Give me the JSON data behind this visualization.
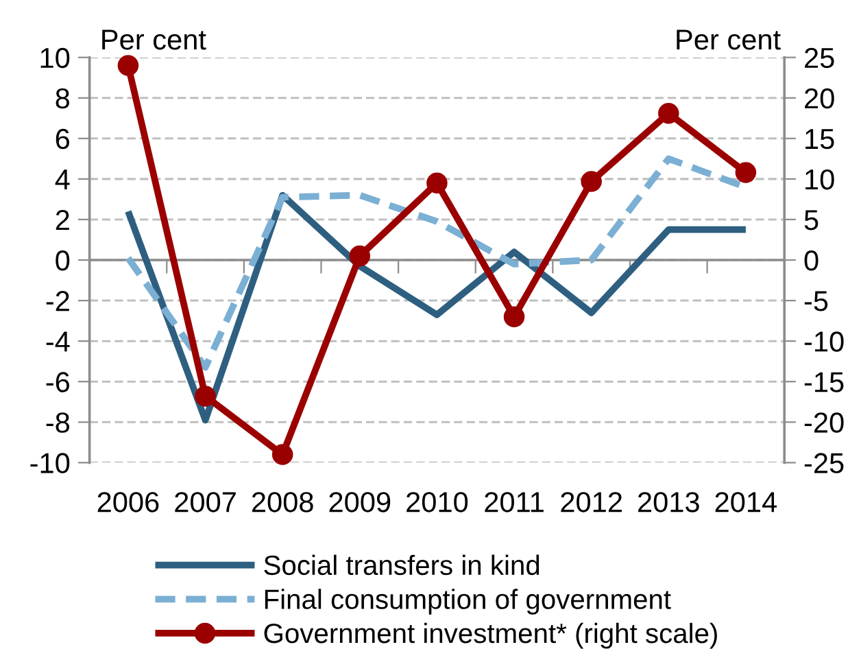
{
  "chart_data": {
    "type": "line",
    "ylabel": "Per cent",
    "y2label": "Per cent",
    "categories": [
      "2006",
      "2007",
      "2008",
      "2009",
      "2010",
      "2011",
      "2012",
      "2013",
      "2014"
    ],
    "ylim": [
      -10,
      10
    ],
    "yticks": [
      -10,
      -8,
      -6,
      -4,
      -2,
      0,
      2,
      4,
      6,
      8,
      10
    ],
    "y2lim": [
      -25,
      25
    ],
    "y2ticks": [
      -25,
      -20,
      -15,
      -10,
      -5,
      0,
      5,
      10,
      15,
      20,
      25
    ],
    "grid": "y",
    "legend": "bottom",
    "series": [
      {
        "name": "Social transfers in kind",
        "color": "#2e5f80",
        "line_style": "solid",
        "values": [
          2.4,
          -7.9,
          3.2,
          -0.3,
          -2.7,
          0.4,
          -2.6,
          1.5,
          1.5
        ]
      },
      {
        "name": "Final consumption of government",
        "color": "#7bafd4",
        "line_style": "dashed",
        "values": [
          0.1,
          -5.3,
          3.1,
          3.2,
          1.9,
          -0.2,
          0.0,
          5.0,
          3.6
        ]
      },
      {
        "name": "Government investment* (right scale)",
        "color": "#9b0000",
        "line_style": "solid",
        "marker": "circle",
        "axis": "y2",
        "values": [
          24.0,
          -16.8,
          -24.0,
          0.5,
          9.5,
          -7.0,
          9.7,
          18.1,
          10.8
        ]
      }
    ]
  }
}
